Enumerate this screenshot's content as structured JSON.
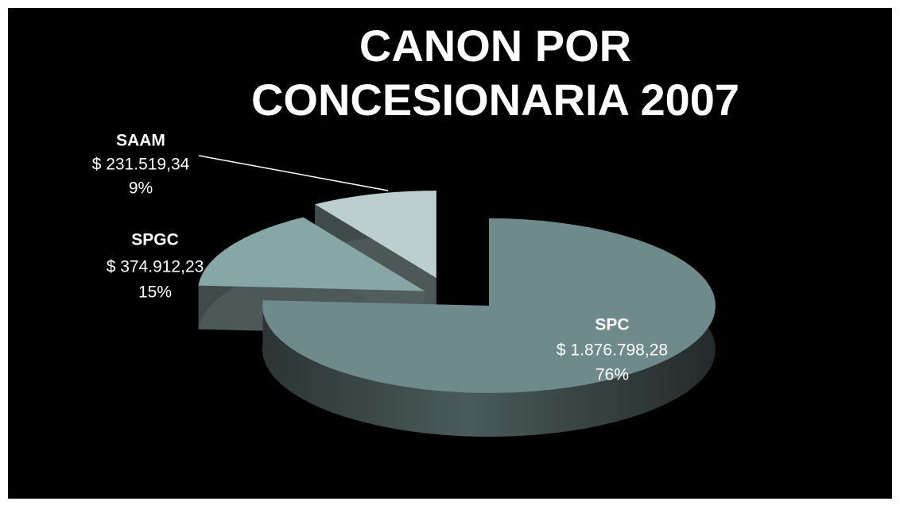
{
  "chart_data": {
    "type": "pie",
    "title": "CANON POR CONCESIONARIA 2007",
    "categories": [
      "SPC",
      "SPGC",
      "SAAM"
    ],
    "values": [
      76,
      15,
      9
    ],
    "value_labels": [
      "76%",
      "15%",
      "9%"
    ],
    "amounts": [
      1876798.28,
      374912.23,
      231519.34
    ],
    "amount_labels": [
      "$ 1.876.798,28",
      "$ 374.912,23",
      "$ 231.519,34"
    ],
    "colors": [
      "#6f8a8a",
      "#87a7a7",
      "#bccece"
    ]
  }
}
